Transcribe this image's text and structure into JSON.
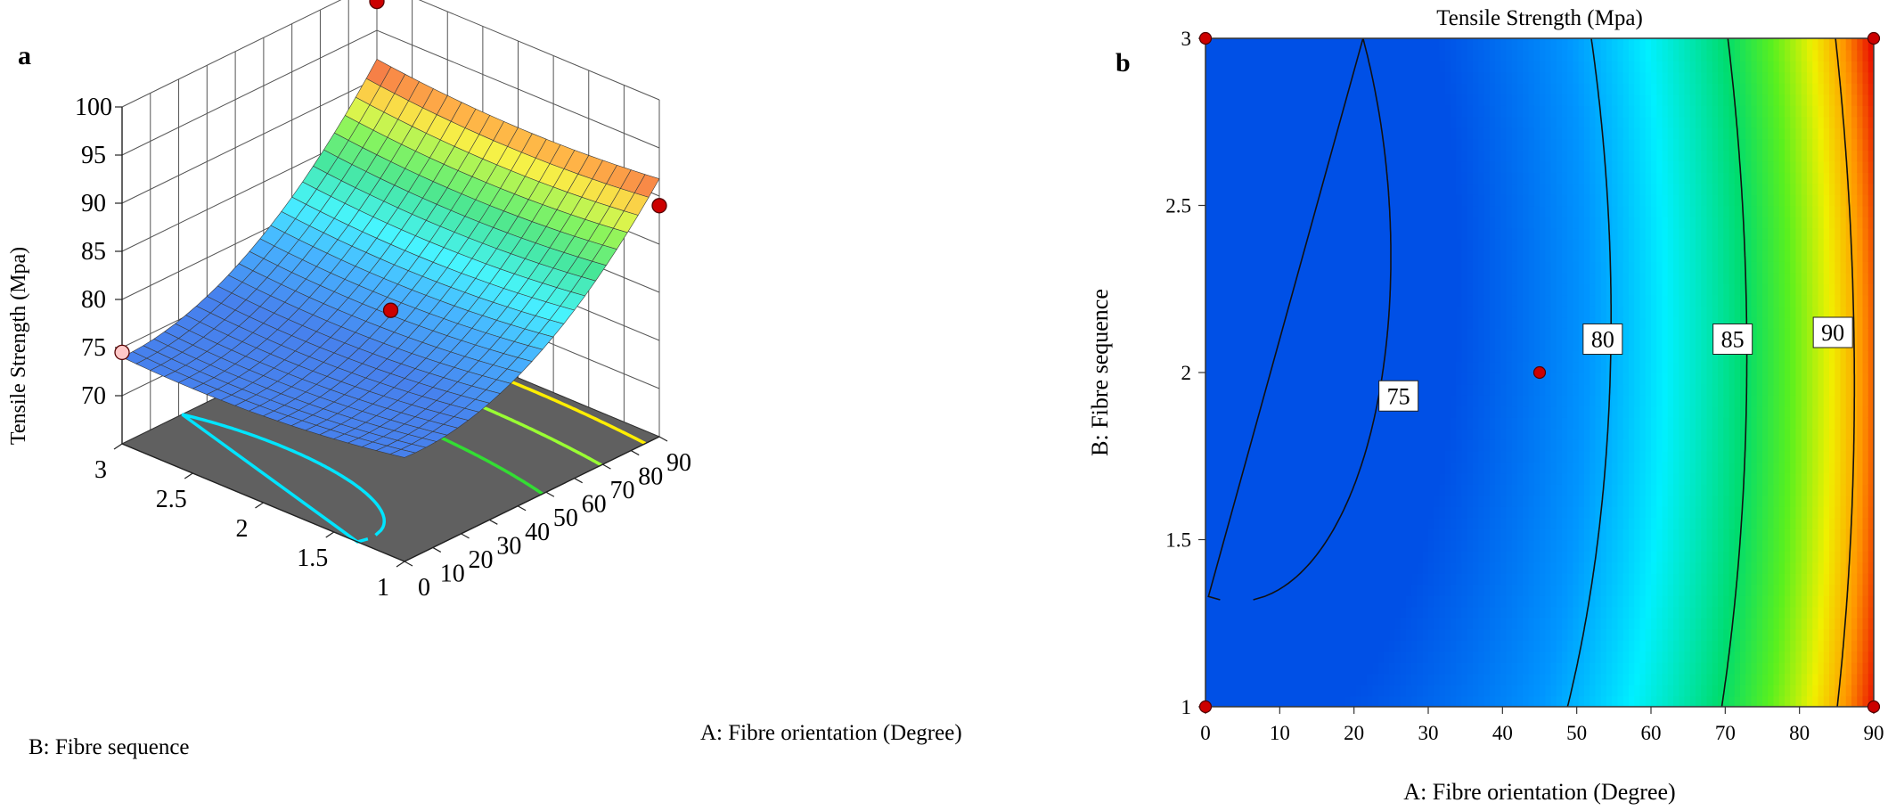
{
  "chart_data": [
    {
      "panel_label": "a",
      "type": "surface3d",
      "z_label": "Tensile Strength (Mpa)",
      "x_label": "A: Fibre orientation (Degree)",
      "y_label": "B: Fibre sequence",
      "z_ticks": [
        70,
        75,
        80,
        85,
        90,
        95,
        100
      ],
      "x_ticks": [
        0,
        10,
        20,
        30,
        40,
        50,
        60,
        70,
        80,
        90
      ],
      "y_ticks": [
        1,
        1.5,
        2,
        2.5,
        3
      ],
      "x_range": [
        0,
        90
      ],
      "y_range": [
        1,
        3
      ],
      "z_range": [
        65,
        100
      ],
      "colormap": "blue-cyan-green-yellow-red",
      "floor_color": "#606060",
      "floor_contours": [
        {
          "level": 75,
          "color": "#00e5ff"
        },
        {
          "level": 80,
          "color": "#33dd33"
        },
        {
          "level": 85,
          "color": "#99ff33"
        },
        {
          "level": 90,
          "color": "#ffee00"
        }
      ],
      "design_points": [
        {
          "x": 0,
          "y": 3,
          "z": 74.5
        },
        {
          "x": 90,
          "y": 1,
          "z": 89
        },
        {
          "x": 45,
          "y": 2,
          "z": 78.5
        },
        {
          "x": 90,
          "y": 3,
          "z": 98
        }
      ]
    },
    {
      "panel_label": "b",
      "type": "contour",
      "title": "Tensile Strength (Mpa)",
      "x_label": "A: Fibre orientation (Degree)",
      "y_label": "B: Fibre sequence",
      "x_ticks": [
        0,
        10,
        20,
        30,
        40,
        50,
        60,
        70,
        80,
        90
      ],
      "y_ticks": [
        "1",
        "1.5",
        "2",
        "2.5",
        "3"
      ],
      "x_range": [
        0,
        90
      ],
      "y_range": [
        1,
        3
      ],
      "colormap": "blue-cyan-green-yellow-red",
      "contour_levels": [
        {
          "level": 75,
          "label": "75",
          "label_at": {
            "x": 26,
            "y": 1.93
          }
        },
        {
          "level": 80,
          "label": "80",
          "label_at": {
            "x": 53.5,
            "y": 2.1
          }
        },
        {
          "level": 85,
          "label": "85",
          "label_at": {
            "x": 71,
            "y": 2.1
          }
        },
        {
          "level": 90,
          "label": "90",
          "label_at": {
            "x": 84.5,
            "y": 2.12
          }
        }
      ],
      "design_points": [
        {
          "x": 0,
          "y": 1
        },
        {
          "x": 0,
          "y": 3
        },
        {
          "x": 90,
          "y": 1
        },
        {
          "x": 90,
          "y": 3
        },
        {
          "x": 45,
          "y": 2
        }
      ]
    }
  ],
  "colors": {
    "point_fill": "#cc0000",
    "point_stroke": "#550000",
    "point_light": "#ffc8c8",
    "contour_line": "#111111"
  }
}
